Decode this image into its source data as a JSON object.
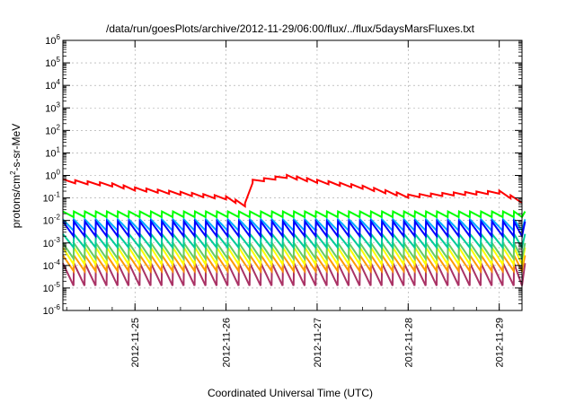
{
  "chart_data": {
    "type": "line",
    "title": "/data/run/goesPlots/archive/2012-11-29/06:00/flux/../flux/5daysMarsFluxes.txt",
    "xlabel": "Coordinated Universal Time (UTC)",
    "ylabel_parts": [
      "protons/cm",
      "2",
      "-s-sr-MeV"
    ],
    "y_scale": "log",
    "ylim_exponents": [
      -6,
      6
    ],
    "y_tick_labels": [
      {
        "base": "10",
        "exp": "6"
      },
      {
        "base": "10",
        "exp": "5"
      },
      {
        "base": "10",
        "exp": "4"
      },
      {
        "base": "10",
        "exp": "3"
      },
      {
        "base": "10",
        "exp": "2"
      },
      {
        "base": "10",
        "exp": "1"
      },
      {
        "base": "10",
        "exp": "0"
      },
      {
        "base": "10",
        "exp": "-1"
      },
      {
        "base": "10",
        "exp": "-2"
      },
      {
        "base": "10",
        "exp": "-3"
      },
      {
        "base": "10",
        "exp": "-4"
      },
      {
        "base": "10",
        "exp": "-5"
      },
      {
        "base": "10",
        "exp": "-6"
      }
    ],
    "x_range_days": [
      "2012-11-24T05:00",
      "2012-11-29T06:00"
    ],
    "x_tick_labels": [
      "2012-11-25",
      "2012-11-26",
      "2012-11-27",
      "2012-11-28",
      "2012-11-29"
    ],
    "grid": true,
    "series_colors": [
      "#ff0000",
      "#00ff00",
      "#0000ff",
      "#00aaff",
      "#00cc99",
      "#66cc66",
      "#ffff00",
      "#ff9900",
      "#aa3366"
    ],
    "series": [
      {
        "color": "#ff0000",
        "baseline_log": -0.35,
        "trend": [
          [
            "2012-11-24T05:00",
            0.58
          ],
          [
            "2012-11-24T18:00",
            0.38
          ],
          [
            "2012-11-25T00:00",
            0.25
          ],
          [
            "2012-11-25T12:00",
            0.16
          ],
          [
            "2012-11-26T00:00",
            0.1
          ],
          [
            "2012-11-26T05:00",
            0.05
          ],
          [
            "2012-11-26T07:00",
            0.55
          ],
          [
            "2012-11-26T16:00",
            0.9
          ],
          [
            "2012-11-27T00:00",
            0.55
          ],
          [
            "2012-11-27T12:00",
            0.3
          ],
          [
            "2012-11-28T00:00",
            0.12
          ],
          [
            "2012-11-28T12:00",
            0.15
          ],
          [
            "2012-11-29T00:00",
            0.18
          ],
          [
            "2012-11-29T06:00",
            0.07
          ]
        ]
      },
      {
        "color": "#00ff00",
        "trend_log": -1.75,
        "sawtooth_log": [
          -1.85,
          -1.6
        ]
      },
      {
        "color": "#0000ff",
        "trend_log": -2.4,
        "sawtooth_log": [
          -2.7,
          -2.05
        ]
      },
      {
        "color": "#00aaff",
        "trend_log": -2.2,
        "sawtooth_log": [
          -2.45,
          -1.95
        ]
      },
      {
        "color": "#00cc99",
        "trend_log": -2.9,
        "sawtooth_log": [
          -3.2,
          -2.6
        ]
      },
      {
        "color": "#66cc66",
        "trend_log": -3.3,
        "sawtooth_log": [
          -3.7,
          -3.0
        ]
      },
      {
        "color": "#ffff00",
        "trend_log": -3.6,
        "sawtooth_log": [
          -3.95,
          -3.2
        ]
      },
      {
        "color": "#ff9900",
        "trend_log": -3.9,
        "sawtooth_log": [
          -4.25,
          -3.55
        ]
      },
      {
        "color": "#aa3366",
        "trend_log": -4.4,
        "sawtooth_log": [
          -4.9,
          -3.9
        ]
      }
    ]
  }
}
